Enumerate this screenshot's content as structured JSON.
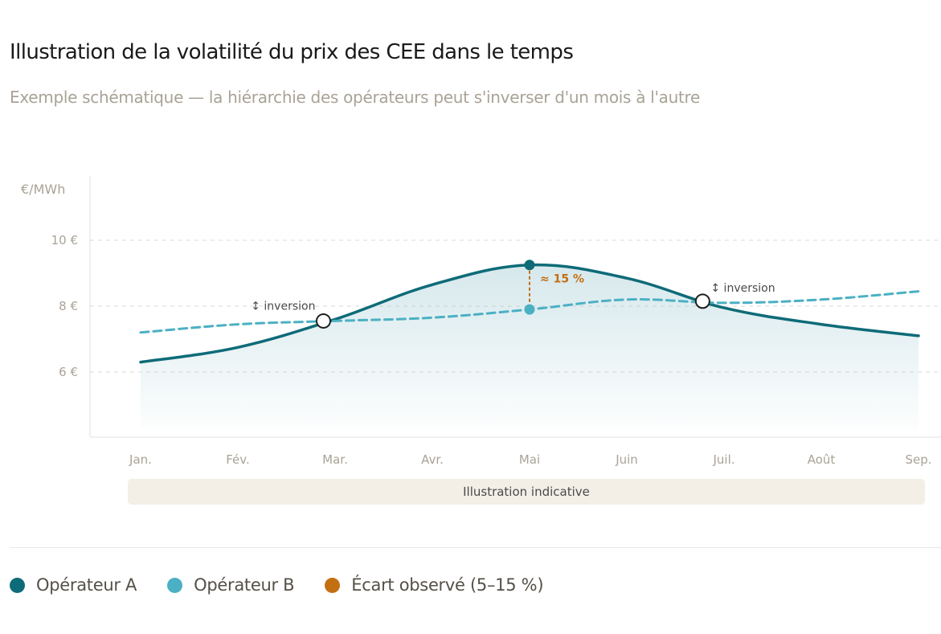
{
  "title": "Illustration de la volatilité du prix des CEE dans le temps",
  "subtitle": "Exemple schématique — la hiérarchie des opérateurs peut s'inverser d'un mois à l'autre",
  "note": "Illustration indicative",
  "colors": {
    "operator_a": "#0e6b78",
    "operator_b": "#4bb0c3",
    "gap": "#c46e12",
    "grid": "#dcdad5",
    "area": "#7fb8c4"
  },
  "legend": [
    {
      "label": "Opérateur A",
      "color": "#0e6b78"
    },
    {
      "label": "Opérateur B",
      "color": "#4bb0c3"
    },
    {
      "label": "Écart observé (5–15 %)",
      "color": "#c46e12"
    }
  ],
  "chart_data": {
    "type": "line",
    "title": "Illustration de la volatilité du prix des CEE dans le temps",
    "subtitle": "Exemple schématique — la hiérarchie des opérateurs peut s'inverser d'un mois à l'autre",
    "ylabel": "€/MWh",
    "categories": [
      "Jan.",
      "Fév.",
      "Mar.",
      "Avr.",
      "Mai",
      "Juin",
      "Juil.",
      "Août",
      "Sep."
    ],
    "yticks": [
      6,
      8,
      10
    ],
    "ytick_labels": [
      "6 €",
      "8 €",
      "10 €"
    ],
    "ylim": [
      4,
      12
    ],
    "grid": true,
    "legend_position": "bottom",
    "series": [
      {
        "name": "Opérateur A",
        "color": "#0e6b78",
        "style": "solid",
        "area_fill": true,
        "values": [
          6.3,
          6.75,
          7.6,
          8.65,
          9.25,
          8.85,
          7.95,
          7.45,
          7.1
        ]
      },
      {
        "name": "Opérateur B",
        "color": "#4bb0c3",
        "style": "dashed",
        "values": [
          7.2,
          7.45,
          7.55,
          7.65,
          7.9,
          8.2,
          8.1,
          8.2,
          8.45
        ]
      }
    ],
    "annotations": [
      {
        "type": "crossing",
        "label": "↕ inversion",
        "x": "Mar.",
        "offset_months": -0.12,
        "y": 7.55
      },
      {
        "type": "crossing",
        "label": "↕ inversion",
        "x": "Juil.",
        "offset_months": -0.22,
        "y": 8.15
      },
      {
        "type": "gap",
        "label": "≈ 15 %",
        "x": "Mai",
        "y_top": 9.25,
        "y_bottom": 7.9
      }
    ]
  }
}
